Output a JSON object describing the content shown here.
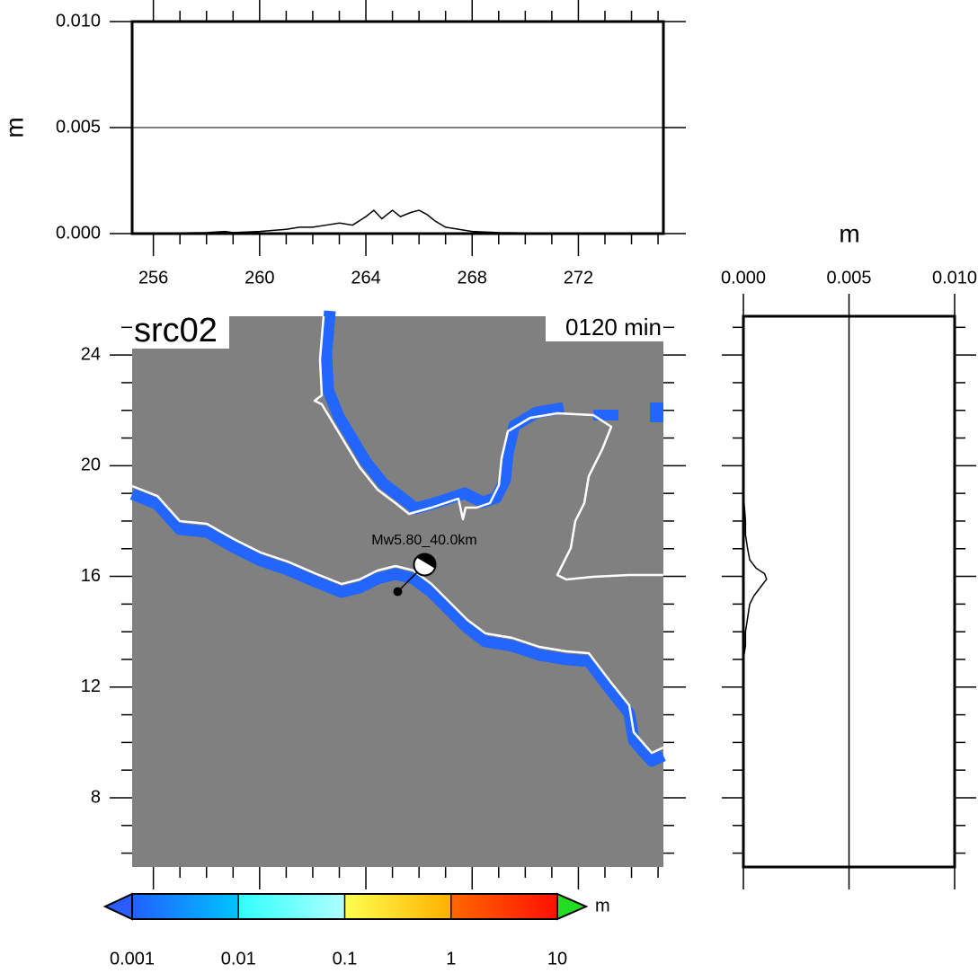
{
  "chart_data": [
    {
      "type": "line",
      "ylabel": "m",
      "color": "#000000",
      "x": [
        255.5,
        256,
        257,
        258,
        258.7,
        259,
        260,
        261,
        261.5,
        262,
        262.5,
        263,
        263.5,
        264,
        264.3,
        264.6,
        265,
        265.3,
        265.7,
        266,
        266.3,
        266.6,
        267,
        267.5,
        268,
        269,
        270,
        272,
        274,
        275
      ],
      "values": [
        0,
        0,
        3e-05,
        5e-05,
        0.0001,
        5e-05,
        0.0001,
        0.0002,
        0.0003,
        0.0003,
        0.0004,
        0.0005,
        0.0004,
        0.0008,
        0.0011,
        0.0007,
        0.0011,
        0.0008,
        0.001,
        0.0011,
        0.0009,
        0.0006,
        0.0003,
        0.0002,
        0.0001,
        5e-05,
        3e-05,
        0,
        0,
        0
      ],
      "xlim": [
        255.2,
        275.2
      ],
      "xticks": [
        256,
        260,
        264,
        268,
        272
      ],
      "xminor": 1,
      "ylim": [
        0,
        0.01
      ],
      "yticks": [
        {
          "value": 0,
          "label": "0.000"
        },
        0.005,
        {
          "value": 0.01,
          "label": "0.010"
        }
      ],
      "grid": true
    },
    {
      "type": "profile",
      "xlabel": "m",
      "color": "#000000",
      "y": [
        13,
        13.5,
        14,
        14.5,
        15,
        15.3,
        15.6,
        15.9,
        16.1,
        16.3,
        16.6,
        17,
        17.5,
        18,
        18.5,
        19
      ],
      "values": [
        0,
        0.0001,
        0.0001,
        0.0002,
        0.0003,
        0.0005,
        0.0008,
        0.0011,
        0.001,
        0.0006,
        0.0003,
        0.0002,
        0.0001,
        0.0001,
        5e-05,
        0
      ],
      "xlim": [
        0,
        0.01
      ],
      "xticks": [
        {
          "value": 0,
          "label": "0.000"
        },
        0.005,
        {
          "value": 0.01,
          "label": "0.010"
        }
      ],
      "grid": true,
      "ylim": [
        5.5,
        25.4
      ],
      "yticks": [
        8,
        12,
        16,
        20,
        24
      ],
      "yminor": 1
    },
    {
      "type": "map",
      "title": "src02",
      "time_label": "0120 min",
      "background": "#808080",
      "xlim": [
        255.2,
        275.2
      ],
      "xticks": [
        256,
        260,
        264,
        268,
        272
      ],
      "xminor": 1,
      "ylim": [
        5.5,
        25.4
      ],
      "yticks": [
        8,
        12,
        16,
        20,
        24
      ],
      "yminor": 1,
      "event_label": "Mw5.80_40.0km",
      "epicenter": {
        "lon": 265.2,
        "lat": 15.45
      }
    },
    {
      "type": "colorbar",
      "label": "m",
      "log": true,
      "lim": [
        0.001,
        10
      ],
      "ticks": [
        0.001,
        0.01,
        0.1,
        1,
        10
      ],
      "segments": [
        [
          "#2060ff",
          "#00c4ff"
        ],
        [
          "#30ffff",
          "#b0ffff"
        ],
        [
          "#ffff50",
          "#ffb000"
        ],
        [
          "#ff6800",
          "#ff1000"
        ]
      ],
      "under_color": "#2a5cff",
      "over_color": "#22dd22"
    }
  ]
}
